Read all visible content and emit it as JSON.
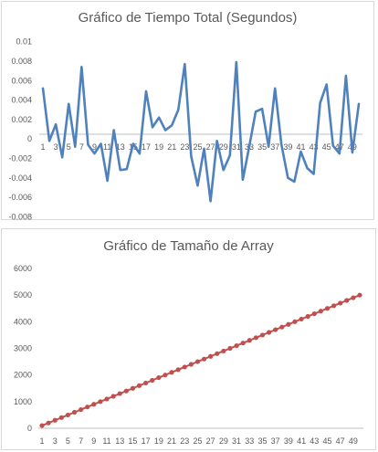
{
  "chart_data": [
    {
      "type": "line",
      "title": "Gráfico de Tiempo Total (Segundos)",
      "xlabel": "",
      "ylabel": "",
      "x": [
        1,
        2,
        3,
        4,
        5,
        6,
        7,
        8,
        9,
        10,
        11,
        12,
        13,
        14,
        15,
        16,
        17,
        18,
        19,
        20,
        21,
        22,
        23,
        24,
        25,
        26,
        27,
        28,
        29,
        30,
        31,
        32,
        33,
        34,
        35,
        36,
        37,
        38,
        39,
        40,
        41,
        42,
        43,
        44,
        45,
        46,
        47,
        48,
        49,
        50
      ],
      "x_tick_labels": [
        "1",
        "3",
        "5",
        "7",
        "9",
        "11",
        "13",
        "15",
        "17",
        "19",
        "21",
        "23",
        "25",
        "27",
        "29",
        "31",
        "33",
        "35",
        "37",
        "39",
        "41",
        "43",
        "45",
        "47",
        "49"
      ],
      "y_tick_labels": [
        "0.01",
        "0.008",
        "0.006",
        "0.004",
        "0.002",
        "0",
        "-0.002",
        "-0.004",
        "-0.006",
        "-0.008"
      ],
      "ylim": [
        -0.009,
        0.011
      ],
      "grid": false,
      "legend": "none",
      "series": [
        {
          "color": "#4f81bd",
          "values": [
            0.0052,
            -0.0002,
            0.0015,
            -0.0019,
            0.0036,
            -0.0008,
            0.0074,
            -0.0006,
            -0.0015,
            -0.0005,
            -0.0043,
            0.0009,
            -0.0032,
            -0.0031,
            -0.0005,
            -0.0015,
            0.0049,
            0.0012,
            0.0022,
            0.0009,
            0.0014,
            0.003,
            0.0077,
            -0.0018,
            -0.0048,
            -0.001,
            -0.0064,
            -0.0002,
            -0.0032,
            -0.0017,
            0.0079,
            -0.0042,
            -0.0008,
            0.0028,
            0.0031,
            -0.0008,
            0.0052,
            -0.0006,
            -0.004,
            -0.0044,
            -0.0013,
            -0.003,
            -0.0036,
            0.0037,
            0.0056,
            -0.0007,
            -0.0015,
            0.0065,
            -0.0014,
            0.0036
          ]
        }
      ]
    },
    {
      "type": "line",
      "title": "Gráfico de Tamaño de Array",
      "xlabel": "",
      "ylabel": "",
      "x": [
        1,
        2,
        3,
        4,
        5,
        6,
        7,
        8,
        9,
        10,
        11,
        12,
        13,
        14,
        15,
        16,
        17,
        18,
        19,
        20,
        21,
        22,
        23,
        24,
        25,
        26,
        27,
        28,
        29,
        30,
        31,
        32,
        33,
        34,
        35,
        36,
        37,
        38,
        39,
        40,
        41,
        42,
        43,
        44,
        45,
        46,
        47,
        48,
        49,
        50
      ],
      "x_tick_labels": [
        "1",
        "3",
        "5",
        "7",
        "9",
        "11",
        "13",
        "15",
        "17",
        "19",
        "21",
        "23",
        "25",
        "27",
        "29",
        "31",
        "33",
        "35",
        "37",
        "39",
        "41",
        "43",
        "45",
        "47",
        "49"
      ],
      "y_tick_labels": [
        "6000",
        "5000",
        "4000",
        "3000",
        "2000",
        "1000",
        "0"
      ],
      "ylim": [
        0,
        6000
      ],
      "grid": false,
      "legend": "none",
      "series": [
        {
          "color": "#c0504d",
          "marker": "circle",
          "values": [
            100,
            200,
            300,
            400,
            500,
            600,
            700,
            800,
            900,
            1000,
            1100,
            1200,
            1300,
            1400,
            1500,
            1600,
            1700,
            1800,
            1900,
            2000,
            2100,
            2200,
            2300,
            2400,
            2500,
            2600,
            2700,
            2800,
            2900,
            3000,
            3100,
            3200,
            3300,
            3400,
            3500,
            3600,
            3700,
            3800,
            3900,
            4000,
            4100,
            4200,
            4300,
            4400,
            4500,
            4600,
            4700,
            4800,
            4900,
            5000
          ]
        }
      ]
    }
  ]
}
